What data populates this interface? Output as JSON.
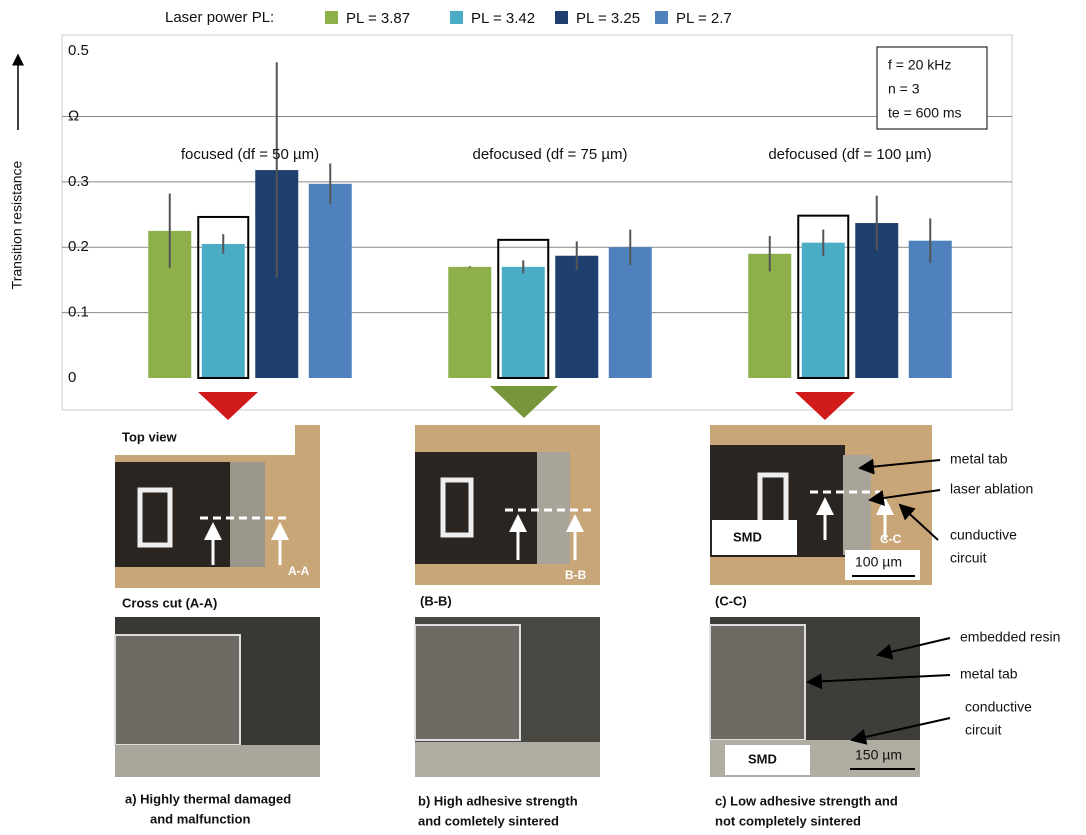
{
  "chart_data": {
    "type": "bar",
    "legend_title": "Laser power PL:",
    "y_label": "Transition resistance",
    "categories": [
      "focused (df = 50 µm)",
      "defocused (df = 75 µm)",
      "defocused (df = 100 µm)"
    ],
    "series": [
      {
        "name": "PL = 3.87",
        "color": "#8db04a",
        "values": [
          0.225,
          0.17,
          0.19
        ],
        "errors": [
          0.057,
          0.001,
          0.027
        ]
      },
      {
        "name": "PL = 3.42",
        "color": "#4bacc6",
        "values": [
          0.205,
          0.17,
          0.207
        ],
        "errors": [
          0.015,
          0.01,
          0.02
        ]
      },
      {
        "name": "PL = 3.25",
        "color": "#1f3f6e",
        "values": [
          0.318,
          0.187,
          0.237
        ],
        "errors": [
          0.165,
          0.022,
          0.042
        ]
      },
      {
        "name": "PL = 2.7",
        "color": "#4f81bd",
        "values": [
          0.297,
          0.2,
          0.21
        ],
        "errors": [
          0.031,
          0.027,
          0.034
        ]
      }
    ],
    "ylim": [
      0,
      0.52
    ],
    "yticks": [
      0,
      0.1,
      0.2,
      0.3,
      {
        "value": 0.4,
        "label": "Ω"
      },
      0.5
    ],
    "grid": true,
    "annotation": [
      "f = 20 kHz",
      "n = 3",
      "te = 600 ms"
    ]
  },
  "panels": [
    {
      "view_title": "Top view",
      "section": "A-A",
      "cut_title": "Cross cut (A-A)",
      "caption": [
        "a) Highly  thermal damaged",
        "and malfunction"
      ]
    },
    {
      "section": "B-B",
      "cut_title": "(B-B)",
      "caption": [
        "b) High adhesive strength",
        "and comletely sintered"
      ]
    },
    {
      "section": "C-C",
      "cut_title": "(C-C)",
      "top_label": "SMD",
      "top_scale": "100 µm",
      "top_callouts": [
        [
          "metal tab"
        ],
        [
          "laser ablation"
        ],
        [
          "cunductive",
          "circuit"
        ]
      ],
      "cut_label": "SMD",
      "cut_scale": "150 µm",
      "cut_callouts": [
        [
          "embedded resin"
        ],
        [
          "metal tab"
        ],
        [
          "conductive",
          "circuit"
        ]
      ],
      "caption": [
        "c) Low adhesive strength and",
        "not completely sintered"
      ]
    }
  ]
}
